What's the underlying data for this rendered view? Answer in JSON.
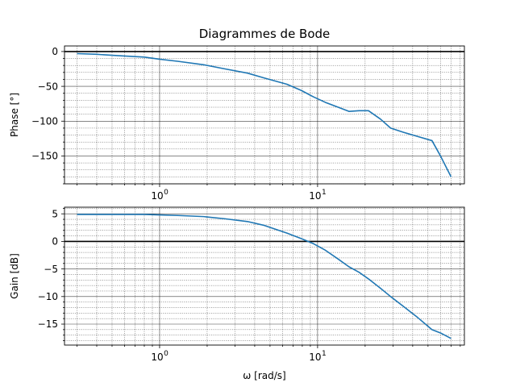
{
  "chart_data": [
    {
      "type": "line",
      "title": "Diagrammes de Bode",
      "xlabel": "",
      "ylabel": "Phase [°]",
      "xscale": "log",
      "xlim": [
        0.25,
        85
      ],
      "ylim": [
        -190,
        8
      ],
      "yticks": [
        0,
        -50,
        -100,
        -150
      ],
      "xticks": [
        1,
        10
      ],
      "xtick_labels": [
        "10^0",
        "10^1"
      ],
      "grid": "both",
      "zero_line": true,
      "color": "#1f77b4",
      "x": [
        0.3,
        0.4,
        0.55,
        0.8,
        1.0,
        1.3,
        1.9,
        2.6,
        3.6,
        4.6,
        6.4,
        7.9,
        9.4,
        11.2,
        13.5,
        15.8,
        18.3,
        21.0,
        25.0,
        29.0,
        35.0,
        43.0,
        53.0,
        60.0,
        70.0
      ],
      "y": [
        -3,
        -4,
        -6,
        -8,
        -11,
        -14,
        -19,
        -25,
        -31,
        -38,
        -47,
        -56,
        -65,
        -73,
        -80,
        -86,
        -85,
        -85,
        -97,
        -110,
        -116,
        -122,
        -128,
        -150,
        -180
      ]
    },
    {
      "type": "line",
      "title": "",
      "xlabel": "ω [rad/s]",
      "ylabel": "Gain [dB]",
      "xscale": "log",
      "xlim": [
        0.25,
        85
      ],
      "ylim": [
        -18.8,
        6.2
      ],
      "yticks": [
        5,
        0,
        -5,
        -10,
        -15
      ],
      "xticks": [
        1,
        10
      ],
      "xtick_labels": [
        "10^0",
        "10^1"
      ],
      "grid": "both",
      "zero_line": true,
      "color": "#1f77b4",
      "x": [
        0.3,
        0.4,
        0.55,
        0.8,
        1.0,
        1.3,
        1.9,
        2.6,
        3.6,
        4.6,
        6.4,
        7.9,
        9.4,
        11.2,
        13.5,
        15.8,
        18.3,
        21.0,
        25.0,
        29.0,
        35.0,
        43.0,
        53.0,
        60.0,
        70.0
      ],
      "y": [
        4.9,
        4.9,
        4.9,
        4.9,
        4.8,
        4.7,
        4.5,
        4.1,
        3.6,
        2.9,
        1.5,
        0.5,
        -0.4,
        -1.6,
        -3.2,
        -4.6,
        -5.6,
        -6.8,
        -8.5,
        -10.0,
        -11.8,
        -13.8,
        -16.0,
        -16.6,
        -17.6
      ]
    }
  ]
}
